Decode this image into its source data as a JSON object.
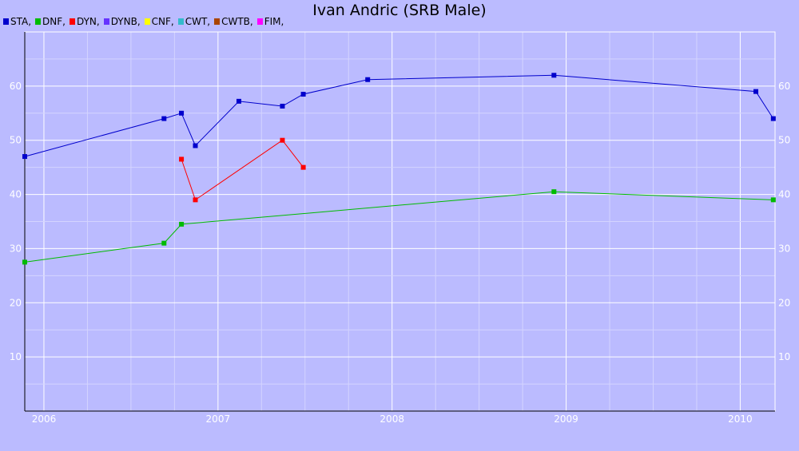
{
  "chart_data": {
    "type": "line",
    "title": "Ivan Andric (SRB Male)",
    "xlabel": "",
    "ylabel": "",
    "xlim": [
      2005.89,
      2010.2
    ],
    "ylim": [
      0,
      70
    ],
    "grid": true,
    "legend_position": "top-left",
    "x_ticks": [
      {
        "value": 2006,
        "label": "2006"
      },
      {
        "value": 2007,
        "label": "2007"
      },
      {
        "value": 2008,
        "label": "2008"
      },
      {
        "value": 2009,
        "label": "2009"
      },
      {
        "value": 2010,
        "label": "2010"
      }
    ],
    "y_ticks": [
      {
        "value": 10,
        "label": "10"
      },
      {
        "value": 20,
        "label": "20"
      },
      {
        "value": 30,
        "label": "30"
      },
      {
        "value": 40,
        "label": "40"
      },
      {
        "value": 50,
        "label": "50"
      },
      {
        "value": 60,
        "label": "60"
      }
    ],
    "legend": [
      {
        "label": "STA,",
        "color": "#0000cc"
      },
      {
        "label": "DNF,",
        "color": "#00bb00"
      },
      {
        "label": "DYN,",
        "color": "#ff0000"
      },
      {
        "label": "DYNB,",
        "color": "#6633ff"
      },
      {
        "label": "CNF,",
        "color": "#ffff00"
      },
      {
        "label": "CWT,",
        "color": "#33bbcc"
      },
      {
        "label": "CWTB,",
        "color": "#aa4400"
      },
      {
        "label": "FIM,",
        "color": "#ff00ff"
      }
    ],
    "series": [
      {
        "name": "STA",
        "color": "#0000cc",
        "x": [
          2005.89,
          2006.69,
          2006.79,
          2006.87,
          2007.12,
          2007.37,
          2007.49,
          2007.86,
          2008.93,
          2010.09,
          2010.19
        ],
        "y": [
          47,
          54,
          55,
          49,
          57.2,
          56.3,
          58.5,
          61.2,
          62,
          59,
          54
        ]
      },
      {
        "name": "DNF",
        "color": "#00bb00",
        "x": [
          2005.89,
          2006.69,
          2006.79,
          2008.93,
          2010.19
        ],
        "y": [
          27.5,
          31,
          34.5,
          40.5,
          39
        ]
      },
      {
        "name": "DYN",
        "color": "#ff0000",
        "x": [
          2006.79,
          2006.87,
          2007.37,
          2007.49
        ],
        "y": [
          46.5,
          39,
          50,
          45
        ]
      }
    ]
  }
}
